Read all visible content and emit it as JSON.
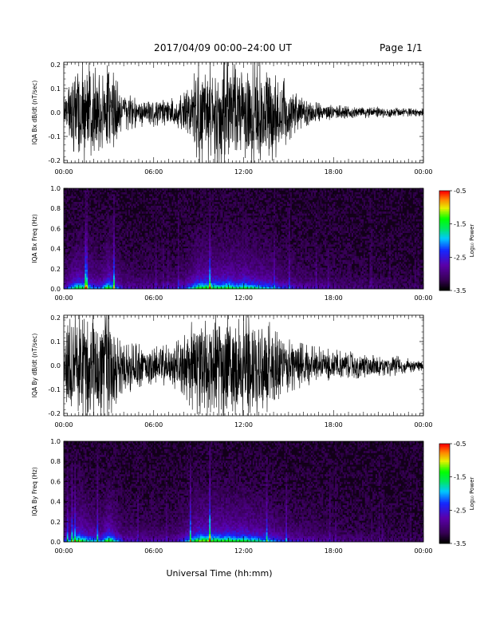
{
  "header": {
    "title": "2017/04/09   00:00–24:00 UT",
    "page": "Page 1/1"
  },
  "xlabel": "Universal Time (hh:mm)",
  "chart_data": [
    {
      "type": "line",
      "ylabel": "IQA Bx dB/dt (nT/sec)",
      "ylim": [
        -0.21,
        0.21
      ],
      "yticks": [
        "0.2",
        "0.1",
        "0.0",
        "-0.1",
        "-0.2"
      ],
      "yticks_values": [
        0.2,
        0.1,
        0.0,
        -0.1,
        -0.2
      ],
      "xlim": [
        0,
        24
      ],
      "xticks": [
        "00:00",
        "06:00",
        "12:00",
        "18:00",
        "00:00"
      ],
      "envelope": {
        "x_hours": [
          0,
          0.5,
          1,
          1.5,
          2,
          2.5,
          3,
          3.5,
          4,
          4.5,
          5,
          5.5,
          6,
          6.5,
          7,
          7.5,
          8,
          8.5,
          9,
          9.5,
          10,
          10.5,
          11,
          11.5,
          12,
          12.5,
          13,
          13.5,
          14,
          14.5,
          15,
          15.5,
          16,
          16.5,
          17,
          17.5,
          18,
          18.5,
          19,
          19.5,
          20,
          20.5,
          21,
          21.5,
          22,
          22.5,
          23,
          23.5,
          24
        ],
        "amplitude": [
          0.09,
          0.14,
          0.21,
          0.21,
          0.2,
          0.14,
          0.21,
          0.14,
          0.08,
          0.07,
          0.06,
          0.06,
          0.06,
          0.05,
          0.06,
          0.06,
          0.08,
          0.13,
          0.21,
          0.21,
          0.21,
          0.21,
          0.21,
          0.2,
          0.21,
          0.21,
          0.21,
          0.21,
          0.2,
          0.16,
          0.12,
          0.08,
          0.06,
          0.05,
          0.04,
          0.035,
          0.03,
          0.03,
          0.03,
          0.025,
          0.025,
          0.02,
          0.025,
          0.02,
          0.02,
          0.018,
          0.017,
          0.015,
          0.015
        ]
      }
    },
    {
      "type": "heatmap",
      "ylabel": "IQA Bx Freq (Hz)",
      "ylim": [
        0,
        1.0
      ],
      "yticks": [
        "1.0",
        "0.8",
        "0.6",
        "0.4",
        "0.2",
        "0.0"
      ],
      "yticks_values": [
        1.0,
        0.8,
        0.6,
        0.4,
        0.2,
        0.0
      ],
      "xlim": [
        0,
        24
      ],
      "xticks": [
        "00:00",
        "06:00",
        "12:00",
        "18:00",
        "00:00"
      ],
      "colorbar": {
        "label": "Log₁₀ Power",
        "range": [
          -3.5,
          -0.5
        ],
        "ticks": [
          "-0.5",
          "-1.5",
          "-2.5",
          "-3.5"
        ]
      },
      "activity_hours": [
        0,
        0.5,
        1,
        1.5,
        2,
        2.5,
        3,
        3.5,
        4,
        4.5,
        5,
        5.5,
        6,
        6.5,
        7,
        7.5,
        8,
        8.5,
        9,
        9.5,
        10,
        10.5,
        11,
        11.5,
        12,
        12.5,
        13,
        13.5,
        14,
        14.5,
        15,
        15.5,
        16,
        16.5,
        17,
        17.5,
        18,
        18.5,
        19,
        19.5,
        20,
        20.5,
        21,
        21.5,
        22,
        22.5,
        23,
        23.5,
        24
      ],
      "activity": [
        0.35,
        0.6,
        0.85,
        0.75,
        0.55,
        0.5,
        0.95,
        0.55,
        0.3,
        0.3,
        0.28,
        0.28,
        0.28,
        0.25,
        0.28,
        0.3,
        0.4,
        0.6,
        0.85,
        0.9,
        0.85,
        0.8,
        0.9,
        0.75,
        0.85,
        0.75,
        0.7,
        0.65,
        0.55,
        0.45,
        0.4,
        0.35,
        0.3,
        0.28,
        0.28,
        0.25,
        0.22,
        0.2,
        0.2,
        0.18,
        0.18,
        0.15,
        0.15,
        0.12,
        0.12,
        0.1,
        0.1,
        0.1,
        0.1
      ]
    },
    {
      "type": "line",
      "ylabel": "IQA By dB/dt (nT/sec)",
      "ylim": [
        -0.21,
        0.21
      ],
      "yticks": [
        "0.2",
        "0.1",
        "0.0",
        "-0.1",
        "-0.2"
      ],
      "yticks_values": [
        0.2,
        0.1,
        0.0,
        -0.1,
        -0.2
      ],
      "xlim": [
        0,
        24
      ],
      "xticks": [
        "00:00",
        "06:00",
        "12:00",
        "18:00",
        "00:00"
      ],
      "envelope": {
        "x_hours": [
          0,
          0.5,
          1,
          1.5,
          2,
          2.5,
          3,
          3.5,
          4,
          4.5,
          5,
          5.5,
          6,
          6.5,
          7,
          7.5,
          8,
          8.5,
          9,
          9.5,
          10,
          10.5,
          11,
          11.5,
          12,
          12.5,
          13,
          13.5,
          14,
          14.5,
          15,
          15.5,
          16,
          16.5,
          17,
          17.5,
          18,
          18.5,
          19,
          19.5,
          20,
          20.5,
          21,
          21.5,
          22,
          22.5,
          23,
          23.5,
          24
        ],
        "amplitude": [
          0.12,
          0.21,
          0.21,
          0.21,
          0.21,
          0.21,
          0.21,
          0.18,
          0.12,
          0.11,
          0.09,
          0.08,
          0.08,
          0.08,
          0.09,
          0.1,
          0.12,
          0.18,
          0.21,
          0.21,
          0.21,
          0.21,
          0.21,
          0.21,
          0.21,
          0.21,
          0.21,
          0.2,
          0.16,
          0.13,
          0.11,
          0.1,
          0.09,
          0.08,
          0.08,
          0.07,
          0.07,
          0.06,
          0.06,
          0.055,
          0.05,
          0.05,
          0.05,
          0.045,
          0.045,
          0.035,
          0.03,
          0.025,
          0.02
        ]
      }
    },
    {
      "type": "heatmap",
      "ylabel": "IQA By Freq (Hz)",
      "ylim": [
        0,
        1.0
      ],
      "yticks": [
        "1.0",
        "0.8",
        "0.6",
        "0.4",
        "0.2",
        "0.0"
      ],
      "yticks_values": [
        1.0,
        0.8,
        0.6,
        0.4,
        0.2,
        0.0
      ],
      "xlim": [
        0,
        24
      ],
      "xticks": [
        "00:00",
        "06:00",
        "12:00",
        "18:00",
        "00:00"
      ],
      "colorbar": {
        "label": "Log₁₀ Power",
        "range": [
          -3.5,
          -0.5
        ],
        "ticks": [
          "-0.5",
          "-1.5",
          "-2.5",
          "-3.5"
        ]
      },
      "activity_hours": [
        0,
        0.5,
        1,
        1.5,
        2,
        2.5,
        3,
        3.5,
        4,
        4.5,
        5,
        5.5,
        6,
        6.5,
        7,
        7.5,
        8,
        8.5,
        9,
        9.5,
        10,
        10.5,
        11,
        11.5,
        12,
        12.5,
        13,
        13.5,
        14,
        14.5,
        15,
        15.5,
        16,
        16.5,
        17,
        17.5,
        18,
        18.5,
        19,
        19.5,
        20,
        20.5,
        21,
        21.5,
        22,
        22.5,
        23,
        23.5,
        24
      ],
      "activity": [
        0.4,
        0.65,
        0.95,
        0.75,
        0.6,
        0.55,
        0.95,
        0.6,
        0.35,
        0.32,
        0.3,
        0.3,
        0.3,
        0.28,
        0.3,
        0.32,
        0.45,
        0.7,
        0.95,
        0.95,
        0.9,
        0.85,
        0.9,
        0.8,
        0.85,
        0.75,
        0.7,
        0.65,
        0.55,
        0.45,
        0.4,
        0.35,
        0.3,
        0.3,
        0.28,
        0.25,
        0.22,
        0.2,
        0.2,
        0.18,
        0.18,
        0.15,
        0.15,
        0.12,
        0.12,
        0.1,
        0.1,
        0.1,
        0.1
      ]
    }
  ]
}
